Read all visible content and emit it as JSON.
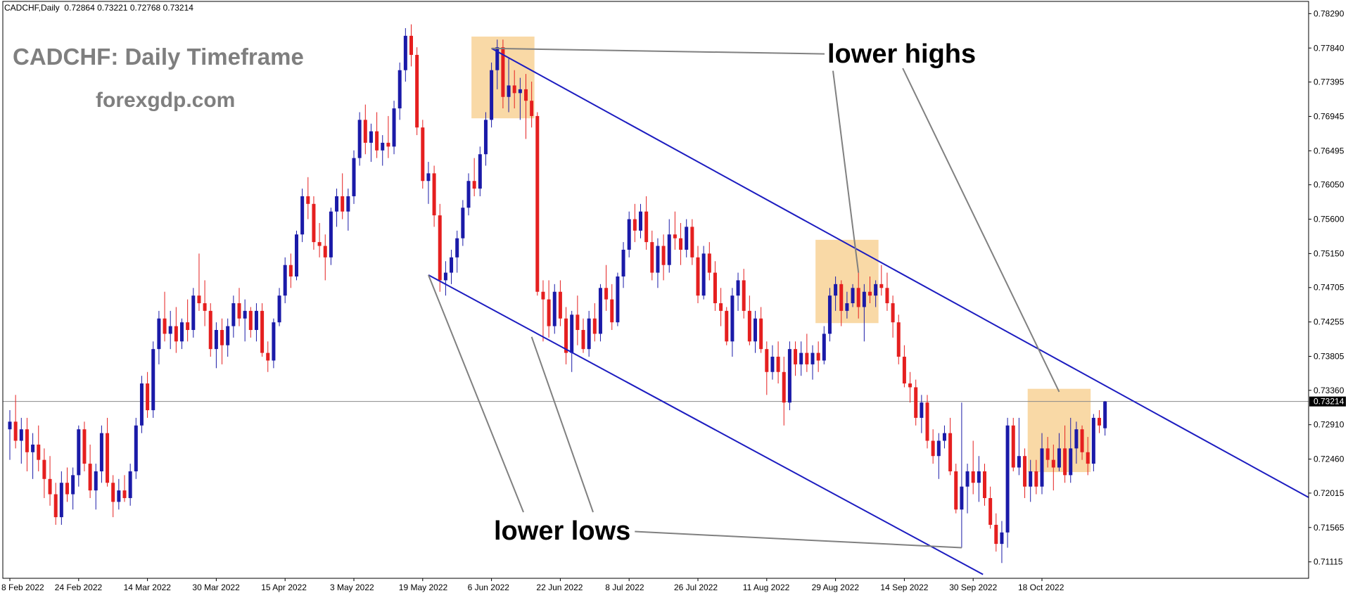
{
  "header": {
    "symbol_text": "CADCHF,Daily",
    "ohlc": [
      "0.72864",
      "0.73221",
      "0.72768",
      "0.73214"
    ]
  },
  "overlay": {
    "title": "CADCHF: Daily Timeframe",
    "site": "forexgdp.com",
    "label_lower_highs": "lower highs",
    "label_lower_lows": "lower lows"
  },
  "colors": {
    "bull": "#1a1aa8",
    "bear": "#e51f1f",
    "channel": "#1c1cc0",
    "box": "#f9d9a6",
    "pointer": "#808080",
    "price_line": "#8a8a8a",
    "grid_border": "#000000"
  },
  "chart_data": {
    "type": "candlestick",
    "symbol": "CADCHF",
    "timeframe": "Daily",
    "current_price": 0.73214,
    "current_price_label": "0.73214",
    "y_tick_labels": [
      "0.78290",
      "0.77840",
      "0.77395",
      "0.76945",
      "0.76495",
      "0.76050",
      "0.75600",
      "0.75150",
      "0.74705",
      "0.74255",
      "0.73805",
      "0.73360",
      "0.72910",
      "0.72460",
      "0.72015",
      "0.71565",
      "0.71115"
    ],
    "y_range": [
      0.709,
      0.7845
    ],
    "x_tick_labels": [
      "8 Feb 2022",
      "24 Feb 2022",
      "14 Mar 2022",
      "30 Mar 2022",
      "15 Apr 2022",
      "3 May 2022",
      "19 May 2022",
      "6 Jun 2022",
      "22 Jun 2022",
      "8 Jul 2022",
      "26 Jul 2022",
      "11 Aug 2022",
      "29 Aug 2022",
      "14 Sep 2022",
      "30 Sep 2022",
      "18 Oct 2022"
    ],
    "x_tick_bar_index": [
      0,
      12,
      24,
      36,
      48,
      60,
      72,
      84,
      96,
      108,
      120,
      132,
      144,
      156,
      168,
      180
    ],
    "candles": [
      [
        0.7285,
        0.731,
        0.7245,
        0.7295
      ],
      [
        0.7295,
        0.733,
        0.726,
        0.727
      ],
      [
        0.727,
        0.73,
        0.724,
        0.7285
      ],
      [
        0.7285,
        0.73,
        0.723,
        0.7255
      ],
      [
        0.7255,
        0.728,
        0.722,
        0.7265
      ],
      [
        0.7265,
        0.729,
        0.723,
        0.7245
      ],
      [
        0.7245,
        0.726,
        0.7195,
        0.722
      ],
      [
        0.722,
        0.725,
        0.7185,
        0.72
      ],
      [
        0.72,
        0.7215,
        0.716,
        0.717
      ],
      [
        0.717,
        0.723,
        0.716,
        0.7215
      ],
      [
        0.7215,
        0.7235,
        0.719,
        0.72
      ],
      [
        0.72,
        0.7235,
        0.718,
        0.7225
      ],
      [
        0.7225,
        0.729,
        0.721,
        0.7285
      ],
      [
        0.7285,
        0.7295,
        0.723,
        0.724
      ],
      [
        0.724,
        0.7265,
        0.7195,
        0.7205
      ],
      [
        0.7205,
        0.724,
        0.718,
        0.723
      ],
      [
        0.723,
        0.729,
        0.7215,
        0.728
      ],
      [
        0.728,
        0.73,
        0.721,
        0.7215
      ],
      [
        0.7215,
        0.7225,
        0.717,
        0.719
      ],
      [
        0.719,
        0.722,
        0.718,
        0.7205
      ],
      [
        0.7205,
        0.7225,
        0.719,
        0.7195
      ],
      [
        0.7195,
        0.724,
        0.7185,
        0.723
      ],
      [
        0.723,
        0.73,
        0.722,
        0.729
      ],
      [
        0.729,
        0.7355,
        0.728,
        0.7345
      ],
      [
        0.7345,
        0.736,
        0.73,
        0.731
      ],
      [
        0.731,
        0.74,
        0.73,
        0.739
      ],
      [
        0.739,
        0.744,
        0.737,
        0.743
      ],
      [
        0.743,
        0.7465,
        0.74,
        0.741
      ],
      [
        0.741,
        0.744,
        0.739,
        0.742
      ],
      [
        0.742,
        0.7445,
        0.7385,
        0.74
      ],
      [
        0.74,
        0.743,
        0.739,
        0.7425
      ],
      [
        0.7425,
        0.7455,
        0.74,
        0.7415
      ],
      [
        0.7415,
        0.747,
        0.7405,
        0.746
      ],
      [
        0.746,
        0.7515,
        0.744,
        0.745
      ],
      [
        0.745,
        0.748,
        0.742,
        0.744
      ],
      [
        0.744,
        0.745,
        0.738,
        0.739
      ],
      [
        0.739,
        0.7425,
        0.7365,
        0.7415
      ],
      [
        0.7415,
        0.743,
        0.737,
        0.7395
      ],
      [
        0.7395,
        0.743,
        0.738,
        0.742
      ],
      [
        0.742,
        0.746,
        0.7405,
        0.745
      ],
      [
        0.745,
        0.747,
        0.742,
        0.743
      ],
      [
        0.743,
        0.7455,
        0.74,
        0.744
      ],
      [
        0.744,
        0.7445,
        0.7405,
        0.7415
      ],
      [
        0.7415,
        0.745,
        0.74,
        0.744
      ],
      [
        0.744,
        0.745,
        0.738,
        0.7385
      ],
      [
        0.7385,
        0.74,
        0.736,
        0.7375
      ],
      [
        0.7375,
        0.743,
        0.7365,
        0.7425
      ],
      [
        0.7425,
        0.747,
        0.742,
        0.746
      ],
      [
        0.746,
        0.751,
        0.745,
        0.75
      ],
      [
        0.75,
        0.7515,
        0.747,
        0.7485
      ],
      [
        0.7485,
        0.7545,
        0.748,
        0.754
      ],
      [
        0.754,
        0.76,
        0.753,
        0.759
      ],
      [
        0.759,
        0.7615,
        0.756,
        0.758
      ],
      [
        0.758,
        0.759,
        0.752,
        0.753
      ],
      [
        0.753,
        0.7555,
        0.751,
        0.7525
      ],
      [
        0.7525,
        0.754,
        0.748,
        0.751
      ],
      [
        0.751,
        0.7575,
        0.75,
        0.757
      ],
      [
        0.757,
        0.76,
        0.755,
        0.759
      ],
      [
        0.759,
        0.762,
        0.756,
        0.757
      ],
      [
        0.757,
        0.76,
        0.7545,
        0.759
      ],
      [
        0.759,
        0.765,
        0.758,
        0.764
      ],
      [
        0.764,
        0.77,
        0.763,
        0.769
      ],
      [
        0.769,
        0.771,
        0.7645,
        0.766
      ],
      [
        0.766,
        0.7685,
        0.7635,
        0.7675
      ],
      [
        0.7675,
        0.77,
        0.764,
        0.765
      ],
      [
        0.765,
        0.767,
        0.763,
        0.766
      ],
      [
        0.766,
        0.7695,
        0.764,
        0.7655
      ],
      [
        0.7655,
        0.7715,
        0.7645,
        0.7705
      ],
      [
        0.7705,
        0.7765,
        0.769,
        0.7755
      ],
      [
        0.7755,
        0.781,
        0.774,
        0.78
      ],
      [
        0.78,
        0.7815,
        0.776,
        0.7775
      ],
      [
        0.7775,
        0.7785,
        0.767,
        0.768
      ],
      [
        0.768,
        0.769,
        0.76,
        0.761
      ],
      [
        0.761,
        0.7635,
        0.758,
        0.762
      ],
      [
        0.762,
        0.763,
        0.755,
        0.7565
      ],
      [
        0.7565,
        0.758,
        0.7465,
        0.748
      ],
      [
        0.748,
        0.7505,
        0.746,
        0.749
      ],
      [
        0.749,
        0.752,
        0.7475,
        0.751
      ],
      [
        0.751,
        0.7545,
        0.749,
        0.7535
      ],
      [
        0.7535,
        0.7585,
        0.7525,
        0.7575
      ],
      [
        0.7575,
        0.762,
        0.7565,
        0.761
      ],
      [
        0.761,
        0.764,
        0.759,
        0.76
      ],
      [
        0.76,
        0.7655,
        0.759,
        0.7645
      ],
      [
        0.7645,
        0.77,
        0.763,
        0.769
      ],
      [
        0.769,
        0.7765,
        0.768,
        0.7755
      ],
      [
        0.7755,
        0.7795,
        0.773,
        0.7785
      ],
      [
        0.7785,
        0.7795,
        0.7705,
        0.772
      ],
      [
        0.772,
        0.777,
        0.77,
        0.7735
      ],
      [
        0.7735,
        0.7755,
        0.7705,
        0.7725
      ],
      [
        0.7725,
        0.7745,
        0.769,
        0.773
      ],
      [
        0.773,
        0.775,
        0.7665,
        0.7715
      ],
      [
        0.7715,
        0.774,
        0.768,
        0.7695
      ],
      [
        0.7695,
        0.77,
        0.746,
        0.7465
      ],
      [
        0.7465,
        0.748,
        0.74,
        0.7455
      ],
      [
        0.7455,
        0.748,
        0.7405,
        0.742
      ],
      [
        0.742,
        0.7475,
        0.741,
        0.7465
      ],
      [
        0.7465,
        0.748,
        0.742,
        0.743
      ],
      [
        0.743,
        0.7445,
        0.737,
        0.7385
      ],
      [
        0.7385,
        0.744,
        0.736,
        0.7435
      ],
      [
        0.7435,
        0.746,
        0.7395,
        0.7415
      ],
      [
        0.7415,
        0.743,
        0.7385,
        0.739
      ],
      [
        0.739,
        0.744,
        0.738,
        0.743
      ],
      [
        0.743,
        0.745,
        0.74,
        0.741
      ],
      [
        0.741,
        0.7475,
        0.74,
        0.747
      ],
      [
        0.747,
        0.75,
        0.744,
        0.7455
      ],
      [
        0.7455,
        0.7475,
        0.7415,
        0.7425
      ],
      [
        0.7425,
        0.749,
        0.742,
        0.7485
      ],
      [
        0.7485,
        0.753,
        0.747,
        0.752
      ],
      [
        0.752,
        0.757,
        0.751,
        0.756
      ],
      [
        0.756,
        0.758,
        0.753,
        0.7545
      ],
      [
        0.7545,
        0.758,
        0.7535,
        0.757
      ],
      [
        0.757,
        0.759,
        0.752,
        0.753
      ],
      [
        0.753,
        0.7545,
        0.748,
        0.749
      ],
      [
        0.749,
        0.7535,
        0.747,
        0.7525
      ],
      [
        0.7525,
        0.754,
        0.748,
        0.75
      ],
      [
        0.75,
        0.756,
        0.749,
        0.754
      ],
      [
        0.754,
        0.757,
        0.752,
        0.7535
      ],
      [
        0.7535,
        0.7555,
        0.75,
        0.752
      ],
      [
        0.752,
        0.756,
        0.751,
        0.755
      ],
      [
        0.755,
        0.756,
        0.75,
        0.751
      ],
      [
        0.751,
        0.7525,
        0.745,
        0.746
      ],
      [
        0.746,
        0.7525,
        0.7455,
        0.7515
      ],
      [
        0.7515,
        0.753,
        0.748,
        0.749
      ],
      [
        0.749,
        0.7505,
        0.744,
        0.745
      ],
      [
        0.745,
        0.747,
        0.742,
        0.744
      ],
      [
        0.744,
        0.7445,
        0.7395,
        0.74
      ],
      [
        0.74,
        0.747,
        0.738,
        0.746
      ],
      [
        0.746,
        0.749,
        0.744,
        0.748
      ],
      [
        0.748,
        0.7495,
        0.743,
        0.744
      ],
      [
        0.744,
        0.746,
        0.7395,
        0.74
      ],
      [
        0.74,
        0.744,
        0.7385,
        0.743
      ],
      [
        0.743,
        0.7445,
        0.7385,
        0.739
      ],
      [
        0.739,
        0.74,
        0.733,
        0.736
      ],
      [
        0.736,
        0.7395,
        0.735,
        0.738
      ],
      [
        0.738,
        0.74,
        0.7345,
        0.736
      ],
      [
        0.736,
        0.738,
        0.729,
        0.732
      ],
      [
        0.732,
        0.74,
        0.731,
        0.739
      ],
      [
        0.739,
        0.74,
        0.7355,
        0.737
      ],
      [
        0.737,
        0.74,
        0.7355,
        0.7385
      ],
      [
        0.7385,
        0.741,
        0.736,
        0.737
      ],
      [
        0.737,
        0.7395,
        0.735,
        0.7385
      ],
      [
        0.7385,
        0.74,
        0.736,
        0.7375
      ],
      [
        0.7375,
        0.742,
        0.737,
        0.741
      ],
      [
        0.741,
        0.747,
        0.74,
        0.746
      ],
      [
        0.746,
        0.7485,
        0.744,
        0.7475
      ],
      [
        0.7475,
        0.748,
        0.742,
        0.744
      ],
      [
        0.744,
        0.7465,
        0.743,
        0.745
      ],
      [
        0.745,
        0.7475,
        0.7445,
        0.747
      ],
      [
        0.747,
        0.749,
        0.743,
        0.7445
      ],
      [
        0.7445,
        0.7475,
        0.74,
        0.7465
      ],
      [
        0.7465,
        0.7485,
        0.745,
        0.746
      ],
      [
        0.746,
        0.748,
        0.7445,
        0.7475
      ],
      [
        0.7475,
        0.75,
        0.746,
        0.747
      ],
      [
        0.747,
        0.749,
        0.744,
        0.745
      ],
      [
        0.745,
        0.746,
        0.7405,
        0.7425
      ],
      [
        0.7425,
        0.7435,
        0.737,
        0.738
      ],
      [
        0.738,
        0.7395,
        0.734,
        0.7345
      ],
      [
        0.7345,
        0.736,
        0.732,
        0.734
      ],
      [
        0.734,
        0.735,
        0.729,
        0.73
      ],
      [
        0.73,
        0.733,
        0.728,
        0.732
      ],
      [
        0.732,
        0.733,
        0.726,
        0.727
      ],
      [
        0.727,
        0.7285,
        0.724,
        0.725
      ],
      [
        0.725,
        0.728,
        0.722,
        0.727
      ],
      [
        0.727,
        0.729,
        0.726,
        0.728
      ],
      [
        0.728,
        0.73,
        0.7225,
        0.723
      ],
      [
        0.723,
        0.724,
        0.7175,
        0.718
      ],
      [
        0.718,
        0.732,
        0.713,
        0.721
      ],
      [
        0.721,
        0.724,
        0.7175,
        0.723
      ],
      [
        0.723,
        0.727,
        0.72,
        0.7215
      ],
      [
        0.7215,
        0.725,
        0.719,
        0.723
      ],
      [
        0.723,
        0.724,
        0.7185,
        0.7195
      ],
      [
        0.7195,
        0.721,
        0.7155,
        0.716
      ],
      [
        0.716,
        0.7175,
        0.7125,
        0.7135
      ],
      [
        0.7135,
        0.7165,
        0.711,
        0.715
      ],
      [
        0.715,
        0.73,
        0.713,
        0.729
      ],
      [
        0.729,
        0.73,
        0.723,
        0.7235
      ],
      [
        0.7235,
        0.73,
        0.7225,
        0.725
      ],
      [
        0.725,
        0.726,
        0.7195,
        0.721
      ],
      [
        0.721,
        0.7245,
        0.719,
        0.723
      ],
      [
        0.723,
        0.7245,
        0.72,
        0.721
      ],
      [
        0.721,
        0.728,
        0.72,
        0.726
      ],
      [
        0.726,
        0.7275,
        0.7235,
        0.7245
      ],
      [
        0.7245,
        0.7265,
        0.7205,
        0.7235
      ],
      [
        0.7235,
        0.728,
        0.723,
        0.726
      ],
      [
        0.726,
        0.729,
        0.7215,
        0.7225
      ],
      [
        0.7225,
        0.73,
        0.7215,
        0.726
      ],
      [
        0.726,
        0.7295,
        0.724,
        0.7285
      ],
      [
        0.7285,
        0.729,
        0.7245,
        0.7255
      ],
      [
        0.7255,
        0.7275,
        0.7225,
        0.724
      ],
      [
        0.724,
        0.7305,
        0.723,
        0.73
      ],
      [
        0.73,
        0.731,
        0.728,
        0.729
      ],
      [
        0.72864,
        0.73221,
        0.72768,
        0.73214
      ]
    ],
    "channel": {
      "upper": {
        "from": {
          "bar": 84,
          "price": 0.77835
        },
        "to": {
          "bar": 193,
          "price": 0.7334
        }
      },
      "lower": {
        "from": {
          "bar": 73,
          "price": 0.7487
        },
        "to": {
          "bar": 168,
          "price": 0.7102
        }
      }
    },
    "zones": [
      {
        "bars": [
          81,
          91
        ],
        "price": [
          0.7692,
          0.7799
        ]
      },
      {
        "bars": [
          141,
          151
        ],
        "price": [
          0.7424,
          0.7533
        ]
      },
      {
        "bars": [
          178,
          188
        ],
        "price": [
          0.7229,
          0.7338
        ]
      }
    ],
    "annotations": [
      {
        "text": "lower highs",
        "points": [
          {
            "bar": 84,
            "price": 0.77835
          },
          {
            "bar": 148,
            "price": 0.749
          },
          {
            "bar": 183,
            "price": 0.7334
          }
        ]
      },
      {
        "text": "lower lows",
        "points": [
          {
            "bar": 73,
            "price": 0.7487
          },
          {
            "bar": 91,
            "price": 0.7406
          },
          {
            "bar": 166,
            "price": 0.713
          }
        ]
      }
    ]
  }
}
